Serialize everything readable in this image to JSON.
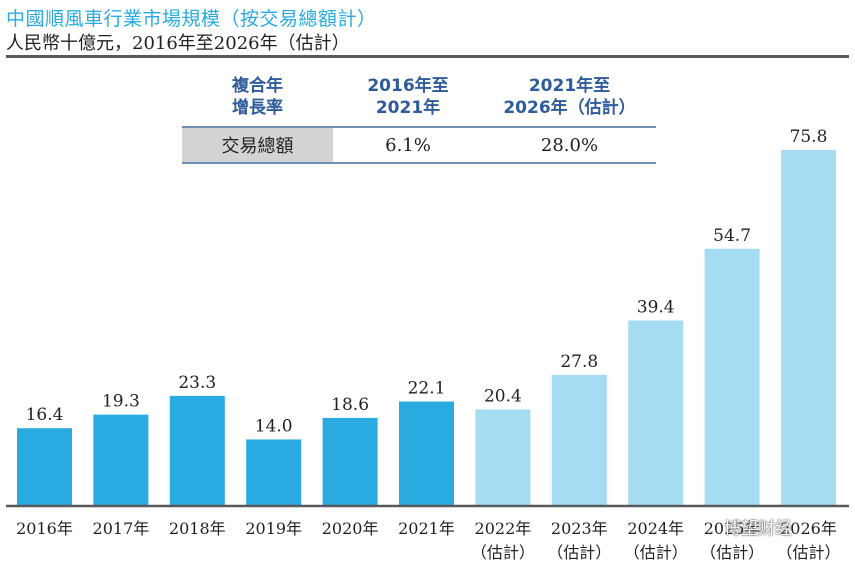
{
  "chart_data": {
    "type": "bar",
    "title": "中國順風車行業市場規模（按交易總額計）",
    "subtitle": "人民幣十億元，2016年至2026年（估計）",
    "xlabel": "",
    "ylabel": "",
    "ylim": [
      0,
      80
    ],
    "grid": false,
    "categories": [
      {
        "line1": "2016年",
        "line2": ""
      },
      {
        "line1": "2017年",
        "line2": ""
      },
      {
        "line1": "2018年",
        "line2": ""
      },
      {
        "line1": "2019年",
        "line2": ""
      },
      {
        "line1": "2020年",
        "line2": ""
      },
      {
        "line1": "2021年",
        "line2": ""
      },
      {
        "line1": "2022年",
        "line2": "（估計）"
      },
      {
        "line1": "2023年",
        "line2": "（估計）"
      },
      {
        "line1": "2024年",
        "line2": "（估計）"
      },
      {
        "line1": "2025年",
        "line2": "（估計）"
      },
      {
        "line1": "2026年",
        "line2": "（估計）"
      }
    ],
    "values": [
      16.4,
      19.3,
      23.3,
      14.0,
      18.6,
      22.1,
      20.4,
      27.8,
      39.4,
      54.7,
      75.8
    ],
    "value_labels": [
      "16.4",
      "19.3",
      "23.3",
      "14.0",
      "18.6",
      "22.1",
      "20.4",
      "27.8",
      "39.4",
      "54.7",
      "75.8"
    ],
    "estimated": [
      false,
      false,
      false,
      false,
      false,
      false,
      true,
      true,
      true,
      true,
      true
    ],
    "colors": {
      "actual": "#29abe2",
      "estimated": "#a6dcf2",
      "axis": "#58595b"
    },
    "cagr_table": {
      "header": [
        "複合年\n增長率",
        "2016年至\n2021年",
        "2021年至\n2026年（估計）"
      ],
      "rows": [
        [
          "交易總額",
          "6.1%",
          "28.0%"
        ]
      ]
    }
  },
  "watermark": "博望财经"
}
